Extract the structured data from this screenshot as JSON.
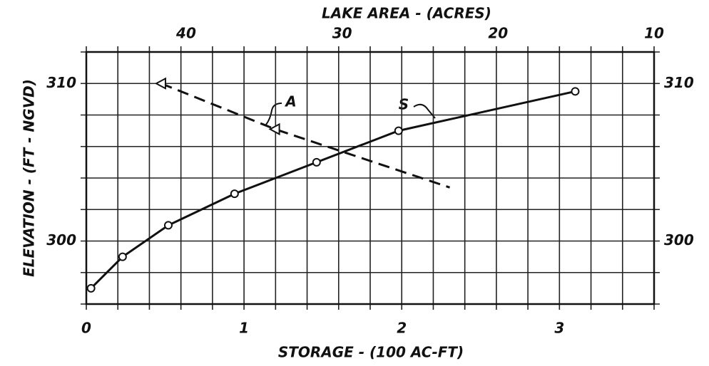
{
  "chart_data": {
    "type": "line",
    "title": "LAKE AREA - (ACRES)",
    "x_label": "STORAGE - (100 AC-FT)",
    "y_label": "ELEVATION - (FT - NGVD)",
    "xlim": [
      0,
      3.6
    ],
    "xticks": [
      0,
      1,
      2,
      3
    ],
    "x2lim": [
      46.4,
      10
    ],
    "x2ticks": [
      40,
      30,
      20,
      10
    ],
    "ylim": [
      296,
      312
    ],
    "yticks": [
      300,
      310
    ],
    "xgrid": [
      0,
      0.2,
      0.4,
      0.6,
      0.8,
      1,
      1.2,
      1.4,
      1.6,
      1.8,
      2,
      2.2,
      2.4,
      2.6,
      2.8,
      3,
      3.2,
      3.4,
      3.6
    ],
    "ygrid": [
      296,
      298,
      300,
      302,
      304,
      306,
      308,
      310,
      312
    ],
    "grid": true,
    "series": [
      {
        "name": "S",
        "color": "#111",
        "marker": "circle",
        "dash": false,
        "x": [
          0.03,
          0.23,
          0.52,
          0.94,
          1.46,
          1.98,
          3.1
        ],
        "values": [
          297,
          299,
          301,
          303,
          305,
          307,
          309.5
        ]
      },
      {
        "name": "A",
        "color": "#111",
        "marker": "triangle",
        "dash": true,
        "axis": "x2",
        "x": [
          41.6,
          34.3,
          23.1
        ],
        "values": [
          310,
          307.1,
          303.4
        ]
      }
    ]
  }
}
